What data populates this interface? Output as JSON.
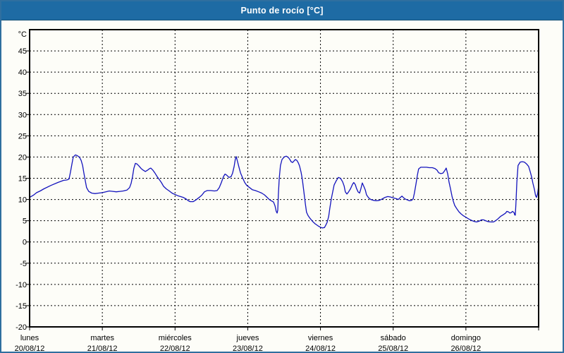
{
  "window": {
    "title": "Punto de rocío [°C]"
  },
  "colors": {
    "frame_border": "#2f6f9f",
    "titlebar_bg": "#1e6ba4",
    "titlebar_text": "#ffffff",
    "plot_bg": "#fdfdf8",
    "grid": "#000000",
    "axis": "#000000",
    "series_line": "#1313bd"
  },
  "chart_data": {
    "type": "line",
    "title": "Punto de rocío [°C]",
    "grid": "dashed",
    "legend_position": "none",
    "y_axis": {
      "unit": "°C",
      "min": -20,
      "max": 50,
      "tick_step": 5,
      "tick_labels": [
        45,
        40,
        35,
        30,
        25,
        20,
        15,
        10,
        5,
        0,
        -5,
        -10,
        -15,
        -20
      ]
    },
    "x_axis": {
      "hours_total": 168,
      "hours_per_day": 24,
      "days": [
        {
          "name": "lunes",
          "date": "20/08/12"
        },
        {
          "name": "martes",
          "date": "21/08/12"
        },
        {
          "name": "miércoles",
          "date": "22/08/12"
        },
        {
          "name": "jueves",
          "date": "23/08/12"
        },
        {
          "name": "viernes",
          "date": "24/08/12"
        },
        {
          "name": "sábado",
          "date": "25/08/12"
        },
        {
          "name": "domingo",
          "date": "26/08/12"
        }
      ]
    },
    "series": [
      {
        "name": "Punto de rocío",
        "color": "#1313bd",
        "points": [
          [
            0,
            10.5
          ],
          [
            1.2,
            11
          ],
          [
            2.3,
            11.6
          ],
          [
            3.5,
            12
          ],
          [
            4.7,
            12.5
          ],
          [
            7,
            13.3
          ],
          [
            9.3,
            14
          ],
          [
            11.2,
            14.5
          ],
          [
            12.3,
            14.6
          ],
          [
            13,
            14.8
          ],
          [
            13.5,
            16.5
          ],
          [
            14,
            18.5
          ],
          [
            14.4,
            20
          ],
          [
            15.1,
            20.5
          ],
          [
            15.8,
            20.3
          ],
          [
            16.5,
            19.9
          ],
          [
            17,
            19.2
          ],
          [
            17.5,
            18
          ],
          [
            17.9,
            16.3
          ],
          [
            18.4,
            14.3
          ],
          [
            18.8,
            12.8
          ],
          [
            19.5,
            11.9
          ],
          [
            20.5,
            11.5
          ],
          [
            21.6,
            11.4
          ],
          [
            22.8,
            11.5
          ],
          [
            24,
            11.6
          ],
          [
            25.1,
            11.8
          ],
          [
            26.3,
            12
          ],
          [
            27.5,
            11.9
          ],
          [
            28.6,
            11.8
          ],
          [
            29.8,
            11.9
          ],
          [
            30.9,
            12
          ],
          [
            32.1,
            12.2
          ],
          [
            33,
            12.8
          ],
          [
            33.5,
            13.8
          ],
          [
            34,
            15.5
          ],
          [
            34.4,
            17.3
          ],
          [
            34.9,
            18.5
          ],
          [
            35.4,
            18.4
          ],
          [
            36.1,
            17.9
          ],
          [
            36.8,
            17.3
          ],
          [
            37.5,
            16.9
          ],
          [
            38.2,
            16.6
          ],
          [
            38.9,
            16.9
          ],
          [
            39.6,
            17.3
          ],
          [
            40,
            17.4
          ],
          [
            40.7,
            16.9
          ],
          [
            41.4,
            16.2
          ],
          [
            42.1,
            15.4
          ],
          [
            42.8,
            14.7
          ],
          [
            43.5,
            14
          ],
          [
            44.2,
            13.1
          ],
          [
            45.1,
            12.5
          ],
          [
            46.1,
            12
          ],
          [
            47,
            11.5
          ],
          [
            47.9,
            11.2
          ],
          [
            48.9,
            10.9
          ],
          [
            49.8,
            10.7
          ],
          [
            50.7,
            10.5
          ],
          [
            51.7,
            10.1
          ],
          [
            52.4,
            9.7
          ],
          [
            53,
            9.5
          ],
          [
            54,
            9.5
          ],
          [
            54.9,
            9.9
          ],
          [
            55.8,
            10.4
          ],
          [
            56.8,
            11
          ],
          [
            57.7,
            11.8
          ],
          [
            58.6,
            12.1
          ],
          [
            59.8,
            12.1
          ],
          [
            61,
            12
          ],
          [
            61.9,
            12.1
          ],
          [
            62.6,
            12.8
          ],
          [
            63.3,
            14
          ],
          [
            64,
            15.4
          ],
          [
            64.5,
            16
          ],
          [
            65.1,
            15.7
          ],
          [
            65.8,
            15.2
          ],
          [
            66.5,
            15.4
          ],
          [
            67,
            16.2
          ],
          [
            67.5,
            17.8
          ],
          [
            67.9,
            19.5
          ],
          [
            68.2,
            20.1
          ],
          [
            68.6,
            19
          ],
          [
            69.1,
            17.6
          ],
          [
            69.6,
            16.3
          ],
          [
            70.3,
            15.1
          ],
          [
            71,
            14
          ],
          [
            71.7,
            13.3
          ],
          [
            72.6,
            12.8
          ],
          [
            73.5,
            12.3
          ],
          [
            74.5,
            12.1
          ],
          [
            75.6,
            11.8
          ],
          [
            76.6,
            11.5
          ],
          [
            77.5,
            11.1
          ],
          [
            78.4,
            10.5
          ],
          [
            79.1,
            10
          ],
          [
            79.8,
            9.7
          ],
          [
            80.5,
            9.4
          ],
          [
            81,
            8.5
          ],
          [
            81.4,
            7.2
          ],
          [
            81.7,
            6.8
          ],
          [
            81.9,
            7.5
          ],
          [
            82.1,
            11
          ],
          [
            82.4,
            15
          ],
          [
            82.8,
            18
          ],
          [
            83.3,
            19.4
          ],
          [
            84,
            20
          ],
          [
            84.7,
            20.2
          ],
          [
            85.4,
            19.9
          ],
          [
            85.9,
            19.4
          ],
          [
            86.3,
            18.9
          ],
          [
            86.8,
            18.7
          ],
          [
            87.3,
            19.1
          ],
          [
            87.7,
            19.4
          ],
          [
            88.2,
            19.2
          ],
          [
            88.7,
            18.6
          ],
          [
            89.1,
            17.9
          ],
          [
            89.6,
            16.4
          ],
          [
            90,
            14.8
          ],
          [
            90.5,
            12
          ],
          [
            91,
            9
          ],
          [
            91.4,
            7
          ],
          [
            91.9,
            6.2
          ],
          [
            92.6,
            5.5
          ],
          [
            93.3,
            4.9
          ],
          [
            94.2,
            4.3
          ],
          [
            95.2,
            3.8
          ],
          [
            95.9,
            3.5
          ],
          [
            96.6,
            3.3
          ],
          [
            97.3,
            3.4
          ],
          [
            97.7,
            3.9
          ],
          [
            98.2,
            4.6
          ],
          [
            98.7,
            6
          ],
          [
            99.1,
            8
          ],
          [
            99.6,
            10.2
          ],
          [
            100.1,
            12
          ],
          [
            100.5,
            13.4
          ],
          [
            101.2,
            14.4
          ],
          [
            101.9,
            15.2
          ],
          [
            102.6,
            15
          ],
          [
            103.3,
            14.2
          ],
          [
            103.8,
            13.2
          ],
          [
            104.2,
            11.8
          ],
          [
            104.7,
            11.3
          ],
          [
            105.2,
            11.7
          ],
          [
            105.9,
            12.5
          ],
          [
            106.6,
            13.6
          ],
          [
            107,
            14
          ],
          [
            107.5,
            13.5
          ],
          [
            107.9,
            12.6
          ],
          [
            108.4,
            11.8
          ],
          [
            108.9,
            11.5
          ],
          [
            109.3,
            12.4
          ],
          [
            109.8,
            13.9
          ],
          [
            110.3,
            13.1
          ],
          [
            110.8,
            12.2
          ],
          [
            111.2,
            11.1
          ],
          [
            111.9,
            10.4
          ],
          [
            112.6,
            10
          ],
          [
            113.5,
            9.8
          ],
          [
            114.5,
            9.7
          ],
          [
            115.4,
            9.8
          ],
          [
            116.3,
            10.1
          ],
          [
            117.3,
            10.5
          ],
          [
            118.2,
            10.7
          ],
          [
            119.1,
            10.6
          ],
          [
            120,
            10.4
          ],
          [
            121,
            10.2
          ],
          [
            121.7,
            10
          ],
          [
            122.4,
            10.5
          ],
          [
            122.9,
            10.8
          ],
          [
            123.3,
            10.5
          ],
          [
            124,
            10.1
          ],
          [
            124.7,
            9.9
          ],
          [
            125.4,
            9.7
          ],
          [
            126.1,
            9.8
          ],
          [
            126.6,
            10.2
          ],
          [
            127,
            11.5
          ],
          [
            127.5,
            13.5
          ],
          [
            128,
            15.8
          ],
          [
            128.4,
            17.2
          ],
          [
            129.1,
            17.6
          ],
          [
            130.1,
            17.6
          ],
          [
            131,
            17.6
          ],
          [
            131.9,
            17.5
          ],
          [
            132.9,
            17.5
          ],
          [
            133.8,
            17.3
          ],
          [
            134.5,
            16.9
          ],
          [
            135,
            16.3
          ],
          [
            135.7,
            16.1
          ],
          [
            136.4,
            16.2
          ],
          [
            137.1,
            16.9
          ],
          [
            137.5,
            17.4
          ],
          [
            138,
            16
          ],
          [
            138.4,
            14.2
          ],
          [
            138.9,
            12.6
          ],
          [
            139.4,
            10.8
          ],
          [
            139.8,
            9.7
          ],
          [
            140.3,
            8.6
          ],
          [
            141,
            7.8
          ],
          [
            141.7,
            7.1
          ],
          [
            142.4,
            6.6
          ],
          [
            143.1,
            6.2
          ],
          [
            143.8,
            5.9
          ],
          [
            144.5,
            5.6
          ],
          [
            145.2,
            5.3
          ],
          [
            146.1,
            5
          ],
          [
            146.8,
            4.8
          ],
          [
            147.5,
            4.7
          ],
          [
            148.4,
            4.9
          ],
          [
            149.1,
            5.2
          ],
          [
            149.8,
            5.2
          ],
          [
            150.5,
            5
          ],
          [
            151.2,
            4.8
          ],
          [
            152.2,
            4.7
          ],
          [
            153.1,
            4.7
          ],
          [
            153.8,
            5
          ],
          [
            154.5,
            5.4
          ],
          [
            155.4,
            6
          ],
          [
            156.3,
            6.4
          ],
          [
            157.1,
            6.8
          ],
          [
            157.5,
            7.2
          ],
          [
            158,
            7.1
          ],
          [
            158.5,
            6.8
          ],
          [
            158.9,
            6.9
          ],
          [
            159.4,
            7.2
          ],
          [
            159.9,
            6.9
          ],
          [
            160.1,
            6.4
          ],
          [
            160.3,
            6.3
          ],
          [
            160.5,
            9
          ],
          [
            160.8,
            14
          ],
          [
            161.2,
            18
          ],
          [
            161.9,
            18.8
          ],
          [
            162.6,
            18.9
          ],
          [
            163.3,
            18.8
          ],
          [
            164,
            18.4
          ],
          [
            164.7,
            17.8
          ],
          [
            165.2,
            16.6
          ],
          [
            165.7,
            15.3
          ],
          [
            166.1,
            13.9
          ],
          [
            166.6,
            12.4
          ],
          [
            167,
            10.9
          ],
          [
            167.3,
            10.5
          ],
          [
            167.7,
            11.5
          ],
          [
            168,
            13.2
          ]
        ]
      }
    ]
  }
}
